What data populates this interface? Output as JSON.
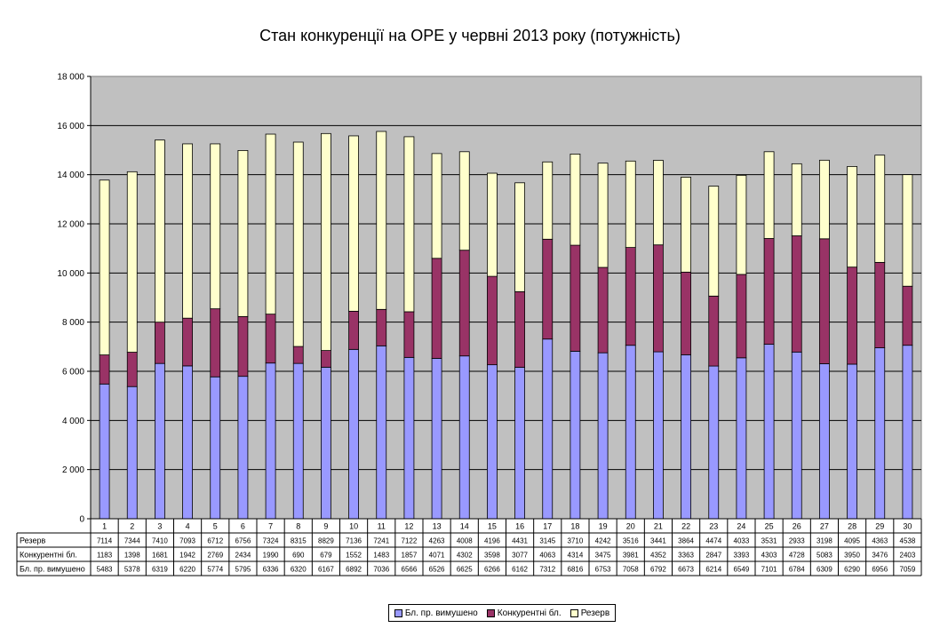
{
  "chart_data": {
    "type": "bar",
    "stacked": true,
    "title": "Стан конкуренції на ОРЕ  у червні 2013 року (потужність)",
    "categories": [
      "1",
      "2",
      "3",
      "4",
      "5",
      "6",
      "7",
      "8",
      "9",
      "10",
      "11",
      "12",
      "13",
      "14",
      "15",
      "16",
      "17",
      "18",
      "19",
      "20",
      "21",
      "22",
      "23",
      "24",
      "25",
      "26",
      "27",
      "28",
      "29",
      "30"
    ],
    "ylim": [
      0,
      18000
    ],
    "y_ticks": [
      "0",
      "2 000",
      "4 000",
      "6 000",
      "8 000",
      "10 000",
      "12 000",
      "14 000",
      "16 000",
      "18 000"
    ],
    "plot_background": "#c0c0c0",
    "grid": true,
    "legend_position": "bottom",
    "series": [
      {
        "name": "Бл. пр. вимушено",
        "color": "#9999ff",
        "values": [
          5483,
          5378,
          6319,
          6220,
          5774,
          5795,
          6336,
          6320,
          6167,
          6892,
          7036,
          6566,
          6526,
          6625,
          6266,
          6162,
          7312,
          6816,
          6753,
          7058,
          6792,
          6673,
          6214,
          6549,
          7101,
          6784,
          6309,
          6290,
          6956,
          7059
        ]
      },
      {
        "name": "Конкурентні бл.",
        "color": "#993366",
        "values": [
          1183,
          1398,
          1681,
          1942,
          2769,
          2434,
          1990,
          690,
          679,
          1552,
          1483,
          1857,
          4071,
          4302,
          3598,
          3077,
          4063,
          4314,
          3475,
          3981,
          4352,
          3363,
          2847,
          3393,
          4303,
          4728,
          5083,
          3950,
          3476,
          2403
        ]
      },
      {
        "name": "Резерв",
        "color": "#ffffcc",
        "values": [
          7114,
          7344,
          7410,
          7093,
          6712,
          6756,
          7324,
          8315,
          8829,
          7136,
          7241,
          7122,
          4263,
          4008,
          4196,
          4431,
          3145,
          3710,
          4242,
          3516,
          3441,
          3864,
          4474,
          4033,
          3531,
          2933,
          3198,
          4095,
          4363,
          4538
        ]
      }
    ],
    "table_rows": [
      {
        "label": "Резерв",
        "series_index": 2
      },
      {
        "label": "Конкурентні бл.",
        "series_index": 1
      },
      {
        "label": "Бл. пр. вимушено",
        "series_index": 0
      }
    ]
  }
}
